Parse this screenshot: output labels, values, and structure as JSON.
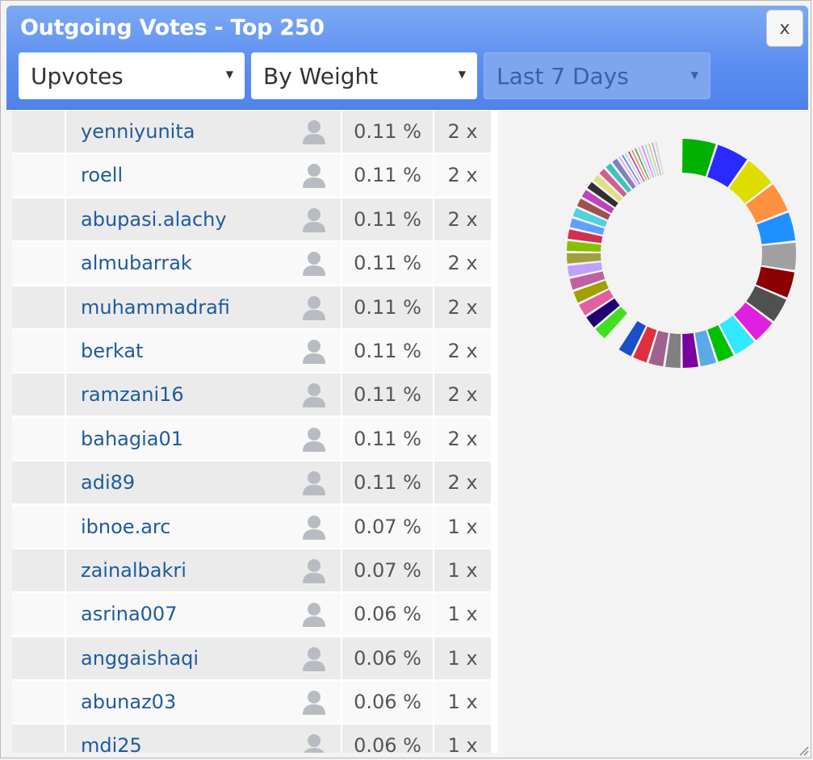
{
  "dialog": {
    "title": "Outgoing Votes - Top 250",
    "close_label": "x"
  },
  "filters": {
    "type": "Upvotes",
    "order": "By Weight",
    "range": "Last 7 Days"
  },
  "rows": [
    {
      "name": "yenniyunita",
      "percent": "0.11 %",
      "count": "2 x"
    },
    {
      "name": "roell",
      "percent": "0.11 %",
      "count": "2 x"
    },
    {
      "name": "abupasi.alachy",
      "percent": "0.11 %",
      "count": "2 x"
    },
    {
      "name": "almubarrak",
      "percent": "0.11 %",
      "count": "2 x"
    },
    {
      "name": "muhammadrafi",
      "percent": "0.11 %",
      "count": "2 x"
    },
    {
      "name": "berkat",
      "percent": "0.11 %",
      "count": "2 x"
    },
    {
      "name": "ramzani16",
      "percent": "0.11 %",
      "count": "2 x"
    },
    {
      "name": "bahagia01",
      "percent": "0.11 %",
      "count": "2 x"
    },
    {
      "name": "adi89",
      "percent": "0.11 %",
      "count": "2 x"
    },
    {
      "name": "ibnoe.arc",
      "percent": "0.07 %",
      "count": "1 x"
    },
    {
      "name": "zainalbakri",
      "percent": "0.07 %",
      "count": "1 x"
    },
    {
      "name": "asrina007",
      "percent": "0.06 %",
      "count": "1 x"
    },
    {
      "name": "anggaishaqi",
      "percent": "0.06 %",
      "count": "1 x"
    },
    {
      "name": "abunaz03",
      "percent": "0.06 %",
      "count": "1 x"
    },
    {
      "name": "mdi25",
      "percent": "0.06 %",
      "count": "1 x"
    }
  ],
  "donut": {
    "colors": [
      "#00b000",
      "#2a2aff",
      "#dddd00",
      "#ff9040",
      "#2090ff",
      "#a0a0a0",
      "#8b0000",
      "#505050",
      "#e020e0",
      "#30e8ff",
      "#00c000",
      "#5aa8e8",
      "#7a00a0",
      "#808080",
      "#a06090",
      "#e03040",
      "#1a4fc8",
      "#f4f4f4",
      "#40e020",
      "#200070",
      "#e060a0",
      "#a0a000",
      "#c060a0",
      "#c0a0ff",
      "#a0a040",
      "#88c000",
      "#d03050",
      "#60a0ff",
      "#50d0e0",
      "#a05050",
      "#c040c0",
      "#303030",
      "#e0e080",
      "#d06090",
      "#40c0c0",
      "#8080c0",
      "#e0a0e0",
      "#6060ff",
      "#b0e0b0",
      "#a030a0",
      "#ff8040",
      "#40a040",
      "#c0c0ff",
      "#ff60ff",
      "#80e0e0",
      "#e0c060",
      "#a0a0e0",
      "#d0d0d0"
    ]
  }
}
